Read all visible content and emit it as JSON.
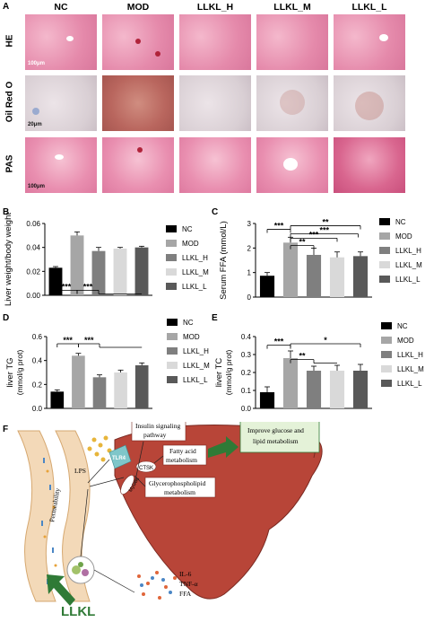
{
  "panelA": {
    "label": "A",
    "columns": [
      "NC",
      "MOD",
      "LLKL_H",
      "LLKL_M",
      "LLKL_L"
    ],
    "rows": [
      "HE",
      "Oil Red O",
      "PAS"
    ],
    "scale_bars": [
      "100μm",
      "20μm",
      "100μm"
    ]
  },
  "charts": {
    "B": {
      "label": "B",
      "chart_data": {
        "type": "bar",
        "categories": [
          "NC",
          "MOD",
          "LLKL_H",
          "LLKL_M",
          "LLKL_L"
        ],
        "values": [
          0.023,
          0.05,
          0.037,
          0.039,
          0.04
        ],
        "errors": [
          0.001,
          0.003,
          0.003,
          0.001,
          0.001
        ],
        "colors": [
          "#000000",
          "#a6a6a6",
          "#7f7f7f",
          "#d9d9d9",
          "#595959"
        ],
        "ylabel": "Liver weight/body weight",
        "ylim": [
          0,
          0.06
        ],
        "yticks": [
          "0.00",
          "0.02",
          "0.04",
          "0.06"
        ],
        "legend": [
          "NC",
          "MOD",
          "LLKL_H",
          "LLKL_M",
          "LLKL_L"
        ],
        "significance": [
          "***",
          "***"
        ]
      }
    },
    "C": {
      "label": "C",
      "chart_data": {
        "type": "bar",
        "categories": [
          "NC",
          "MOD",
          "LLKL_H",
          "LLKL_M",
          "LLKL_L"
        ],
        "values": [
          0.87,
          2.22,
          1.72,
          1.62,
          1.67
        ],
        "errors": [
          0.13,
          0.22,
          0.27,
          0.22,
          0.17
        ],
        "colors": [
          "#000000",
          "#a6a6a6",
          "#7f7f7f",
          "#d9d9d9",
          "#595959"
        ],
        "ylabel": "Serum FFA (mmol/L)",
        "ylim": [
          0,
          3
        ],
        "yticks": [
          "0",
          "1",
          "2",
          "3"
        ],
        "legend": [
          "NC",
          "MOD",
          "LLKL_H",
          "LLKL_M",
          "LLKL_L"
        ],
        "significance": [
          "***",
          "**",
          "***",
          "***",
          "**"
        ]
      }
    },
    "D": {
      "label": "D",
      "chart_data": {
        "type": "bar",
        "categories": [
          "NC",
          "MOD",
          "LLKL_H",
          "LLKL_M",
          "LLKL_L"
        ],
        "values": [
          0.14,
          0.44,
          0.26,
          0.3,
          0.36
        ],
        "errors": [
          0.015,
          0.02,
          0.02,
          0.02,
          0.02
        ],
        "colors": [
          "#000000",
          "#a6a6a6",
          "#7f7f7f",
          "#d9d9d9",
          "#595959"
        ],
        "ylabel": "liver TG",
        "ylabel2": "(mmol/g prot)",
        "ylim": [
          0,
          0.6
        ],
        "yticks": [
          "0.0",
          "0.2",
          "0.4",
          "0.6"
        ],
        "legend": [
          "NC",
          "MOD",
          "LLKL_H",
          "LLKL_M",
          "LLKL_L"
        ],
        "significance": [
          "***",
          "***"
        ]
      }
    },
    "E": {
      "label": "E",
      "chart_data": {
        "type": "bar",
        "categories": [
          "NC",
          "MOD",
          "LLKL_H",
          "LLKL_M",
          "LLKL_L"
        ],
        "values": [
          0.09,
          0.28,
          0.21,
          0.21,
          0.21
        ],
        "errors": [
          0.03,
          0.04,
          0.025,
          0.03,
          0.035
        ],
        "colors": [
          "#000000",
          "#a6a6a6",
          "#7f7f7f",
          "#d9d9d9",
          "#595959"
        ],
        "ylabel": "liver TC",
        "ylabel2": "(mmol/g prot)",
        "ylim": [
          0,
          0.4
        ],
        "yticks": [
          "0.0",
          "0.1",
          "0.2",
          "0.3",
          "0.4"
        ],
        "legend": [
          "NC",
          "MOD",
          "LLKL_H",
          "LLKL_M",
          "LLKL_L"
        ],
        "significance": [
          "***",
          "**",
          "*"
        ]
      }
    }
  },
  "panelF": {
    "label": "F",
    "permeability": "Permeability",
    "lps": "LPS",
    "tlr4": "TLR4",
    "myd88": "MyD88",
    "ctsk": "CTSK",
    "insulin": "Insulin signaling",
    "insulin2": "pathway",
    "fatty": "Fatty acid",
    "fatty2": "metabolism",
    "glycero": "Glycerophospholipid",
    "glycero2": "metabolism",
    "improve": "Improve glucose and",
    "improve2": "lipid metabolism",
    "il6": "IL-6",
    "tnf": "TNF-α",
    "ffa": "FFA",
    "llkl": "LLKL"
  }
}
